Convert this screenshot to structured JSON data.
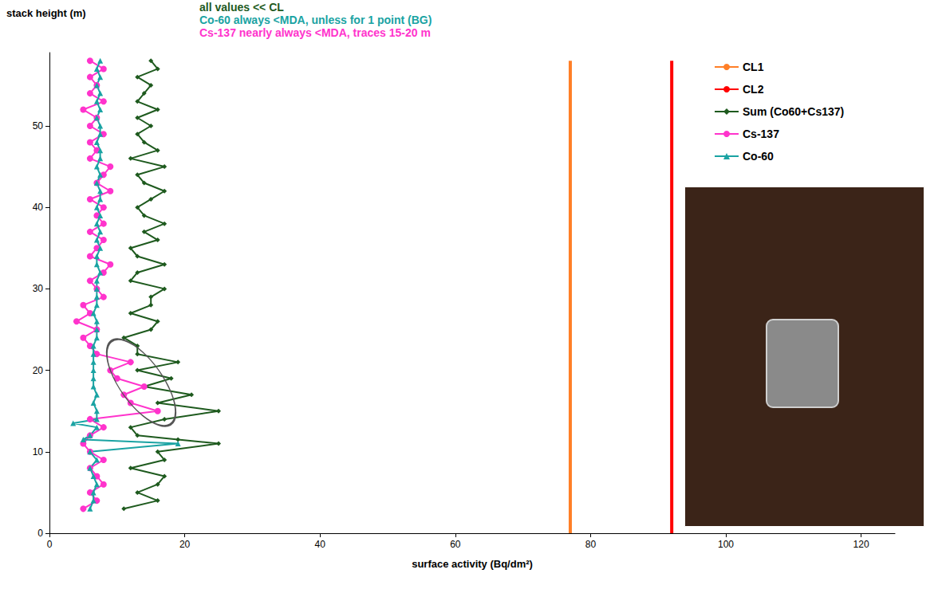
{
  "chart_data": {
    "type": "line",
    "xlabel": "surface activity (Bq/dm²)",
    "ylabel": "stack height (m)",
    "annotations": [
      {
        "text": "all values << CL",
        "color": "#1e5a1e"
      },
      {
        "text": "Co-60 always <MDA, unless for 1 point (BG)",
        "color": "#1aa3a3"
      },
      {
        "text": "Cs-137 nearly always <MDA, traces 15-20 m",
        "color": "#ff33cc"
      }
    ],
    "xlim": [
      0,
      125
    ],
    "xticks": [
      0,
      20,
      40,
      60,
      80,
      100,
      120
    ],
    "ylim": [
      0,
      59
    ],
    "yticks": [
      0,
      10,
      20,
      30,
      40,
      50
    ],
    "grid": false,
    "legend": "upper right",
    "series": [
      {
        "name": "CL1",
        "color": "#ff7f27",
        "marker": "none",
        "x": [
          77,
          77
        ],
        "values": [
          0,
          58
        ]
      },
      {
        "name": "CL2",
        "color": "#ff0000",
        "marker": "none",
        "x": [
          92,
          92
        ],
        "values": [
          0,
          58
        ]
      },
      {
        "name": "Sum (Co60+Cs137)",
        "color": "#1e5a1e",
        "marker": "diamond",
        "x": [
          11,
          16,
          13,
          16,
          17,
          12,
          17,
          16,
          25,
          19,
          13,
          12,
          17,
          25,
          16,
          21,
          14,
          18,
          13,
          19,
          13,
          13,
          11,
          15,
          16,
          12,
          15,
          15,
          17,
          12,
          13,
          17,
          13,
          12,
          16,
          14,
          17,
          14,
          13,
          15,
          17,
          14,
          13,
          17,
          12,
          16,
          14,
          13,
          15,
          13,
          16,
          13,
          14,
          15,
          13,
          16,
          15
        ],
        "values": [
          3,
          4,
          5,
          6,
          7,
          8,
          9,
          10,
          11,
          11.5,
          12,
          13,
          14,
          15,
          16,
          17,
          18,
          19,
          20,
          21,
          22,
          23,
          24,
          25,
          26,
          27,
          28,
          29,
          30,
          31,
          32,
          33,
          34,
          35,
          36,
          37,
          38,
          39,
          40,
          41,
          42,
          43,
          44,
          45,
          46,
          47,
          48,
          49,
          50,
          51,
          52,
          53,
          54,
          55,
          56,
          57,
          58
        ]
      },
      {
        "name": "Cs-137",
        "color": "#ff33cc",
        "marker": "circle",
        "x": [
          5,
          7,
          6,
          8,
          7,
          6,
          8,
          6,
          5,
          6,
          8,
          6,
          16,
          12,
          11,
          14,
          10,
          9,
          12,
          7,
          6,
          5,
          7,
          4,
          6,
          5,
          8,
          7,
          6,
          8,
          9,
          6,
          7,
          8,
          6,
          8,
          7,
          8,
          6,
          9,
          7,
          8,
          9,
          6,
          7,
          6,
          8,
          6,
          7,
          5,
          8,
          6,
          7,
          6,
          8,
          6
        ],
        "values": [
          3,
          4,
          5,
          6,
          7,
          8,
          9,
          10,
          11,
          12,
          13,
          14,
          15,
          16,
          17,
          18,
          19,
          20,
          21,
          22,
          23,
          24,
          25,
          26,
          27,
          28,
          29,
          30,
          31,
          32,
          33,
          34,
          35,
          36,
          37,
          38,
          39,
          40,
          41,
          42,
          43,
          44,
          45,
          46,
          47,
          48,
          49,
          50,
          51,
          52,
          53,
          54,
          55,
          56,
          57,
          58
        ]
      },
      {
        "name": "Co-60",
        "color": "#1aa3a3",
        "marker": "triangle",
        "x": [
          6,
          6.5,
          6.5,
          7,
          6.5,
          6,
          7,
          6,
          19,
          5,
          6,
          7,
          3.5,
          7,
          7,
          6.5,
          7,
          6.5,
          6.5,
          6.5,
          6.5,
          6.5,
          6.5,
          7,
          7,
          7,
          6.5,
          7,
          7,
          7,
          7,
          7.5,
          7,
          7,
          7.5,
          7,
          7.5,
          7,
          7.5,
          7,
          7.5,
          7.5,
          7,
          7.5,
          7,
          7.5,
          7.5,
          7,
          7.5,
          7.5,
          7,
          7.5,
          7,
          7.5,
          7,
          7.5,
          7,
          7.5
        ],
        "values": [
          3,
          4,
          5,
          6,
          7,
          8,
          9,
          10,
          11,
          11.5,
          12,
          13,
          13.5,
          14,
          15,
          16,
          17,
          18,
          19,
          20,
          21,
          22,
          23,
          24,
          25,
          26,
          27,
          28,
          29,
          30,
          31,
          32,
          33,
          34,
          35,
          36,
          37,
          38,
          39,
          40,
          41,
          42,
          43,
          44,
          45,
          46,
          47,
          48,
          49,
          50,
          51,
          52,
          53,
          54,
          55,
          56,
          57,
          58
        ]
      }
    ]
  }
}
